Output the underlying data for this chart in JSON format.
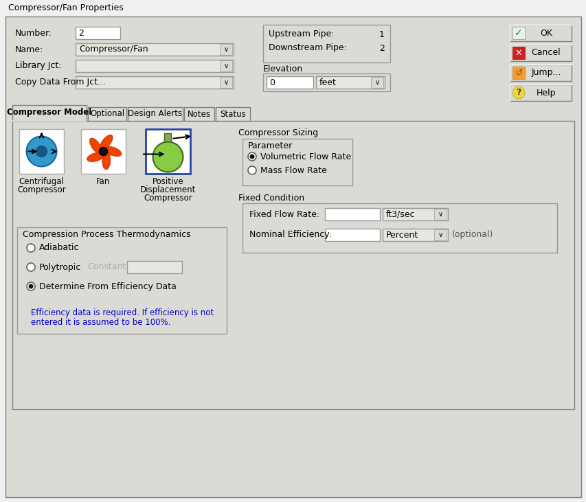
{
  "title": "Compressor/Fan Properties",
  "bg_color": "#dcdad5",
  "panel_bg": "#dcdad5",
  "white": "#ffffff",
  "light_gray": "#e8e6e0",
  "border_color": "#808080",
  "fields": {
    "number_label": "Number:",
    "number_value": "2",
    "name_label": "Name:",
    "name_value": "Compressor/Fan",
    "library_label": "Library Jct:",
    "copy_label": "Copy Data From Jct..."
  },
  "pipe_info": {
    "upstream_label": "Upstream Pipe:",
    "upstream_value": "1",
    "downstream_label": "Downstream Pipe:",
    "downstream_value": "2",
    "elevation_label": "Elevation",
    "elevation_value": "0",
    "elevation_unit": "feet"
  },
  "buttons": {
    "ok": "OK",
    "cancel": "Cancel",
    "jump": "Jump...",
    "help": "Help"
  },
  "tabs": [
    "Compressor Model",
    "Optional",
    "Design Alerts",
    "Notes",
    "Status"
  ],
  "active_tab": 0,
  "compressor_icons": [
    "Centrifugal\nCompressor",
    "Fan",
    "Positive\nDisplacement\nCompressor"
  ],
  "active_icon": 2,
  "compressor_sizing_label": "Compressor Sizing",
  "parameter_label": "Parameter",
  "parameter_options": [
    "Volumetric Flow Rate",
    "Mass Flow Rate"
  ],
  "active_parameter": 0,
  "fixed_condition_label": "Fixed Condition",
  "fixed_flow_label": "Fixed Flow Rate:",
  "fixed_flow_unit": "ft3/sec",
  "nominal_eff_label": "Nominal Efficiency:",
  "nominal_eff_unit": "Percent",
  "optional_text": "(optional)",
  "thermodynamics_label": "Compression Process Thermodynamics",
  "thermo_options": [
    "Adiabatic",
    "Polytropic",
    "Determine From Efficiency Data"
  ],
  "active_thermo": 2,
  "constant_label": "Constant:",
  "efficiency_note": "Efficiency data is required. If efficiency is not\nentered it is assumed to be 100%.",
  "blue_text": "#0000cc"
}
